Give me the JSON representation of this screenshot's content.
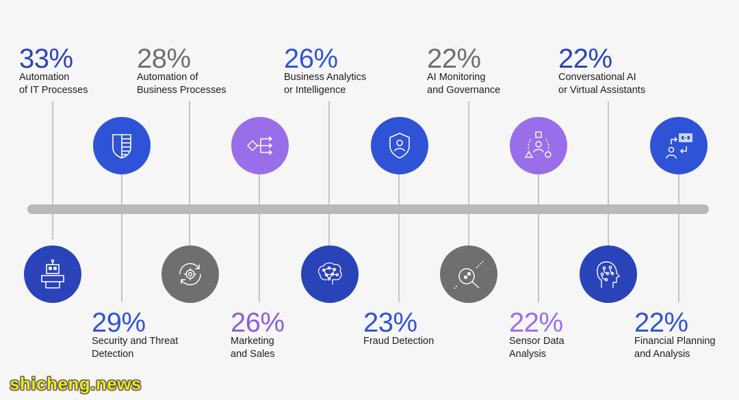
{
  "colors": {
    "blue": "#2f53d6",
    "dark_blue": "#2a43b9",
    "purple": "#9a6ee8",
    "gray": "#6f6f6f",
    "bar": "#b9b9b9",
    "line": "#c4c4c4"
  },
  "top_items": [
    {
      "percent": "33%",
      "line1": "Automation",
      "line2": "of IT Processes",
      "color": "#2a43b9"
    },
    {
      "percent": "28%",
      "line1": "Automation of",
      "line2": "Business Processes",
      "color": "#6f6f6f"
    },
    {
      "percent": "26%",
      "line1": "Business Analytics",
      "line2": "or Intelligence",
      "color": "#2f53d6"
    },
    {
      "percent": "22%",
      "line1": "AI Monitoring",
      "line2": "and Governance",
      "color": "#6f6f6f"
    },
    {
      "percent": "22%",
      "line1": "Conversational AI",
      "line2": "or Virtual Assistants",
      "color": "#2a43b9"
    }
  ],
  "bottom_items": [
    {
      "percent": "29%",
      "line1": "Security and Threat",
      "line2": "Detection",
      "color": "#2f53d6"
    },
    {
      "percent": "26%",
      "line1": "Marketing",
      "line2": "and Sales",
      "color": "#8b5fd6"
    },
    {
      "percent": "23%",
      "line1": "Fraud Detection",
      "line2": "",
      "color": "#2f53d6"
    },
    {
      "percent": "22%",
      "line1": "Sensor Data",
      "line2": "Analysis",
      "color": "#9a6ee8"
    },
    {
      "percent": "22%",
      "line1": "Financial Planning",
      "line2": "and Analysis",
      "color": "#2f53d6"
    }
  ],
  "icons": {
    "robot": "robot-icon",
    "shield_stack": "shield-stack-icon",
    "gear_cycle": "gear-cycle-icon",
    "flow": "flow-icon",
    "brain": "brain-icon",
    "shield_user": "shield-user-icon",
    "magnifier": "magnifier-icon",
    "shapes_person": "shapes-person-icon",
    "head_circuit": "head-circuit-icon",
    "money_transfer": "money-transfer-icon"
  },
  "watermark": "shicheng.news"
}
